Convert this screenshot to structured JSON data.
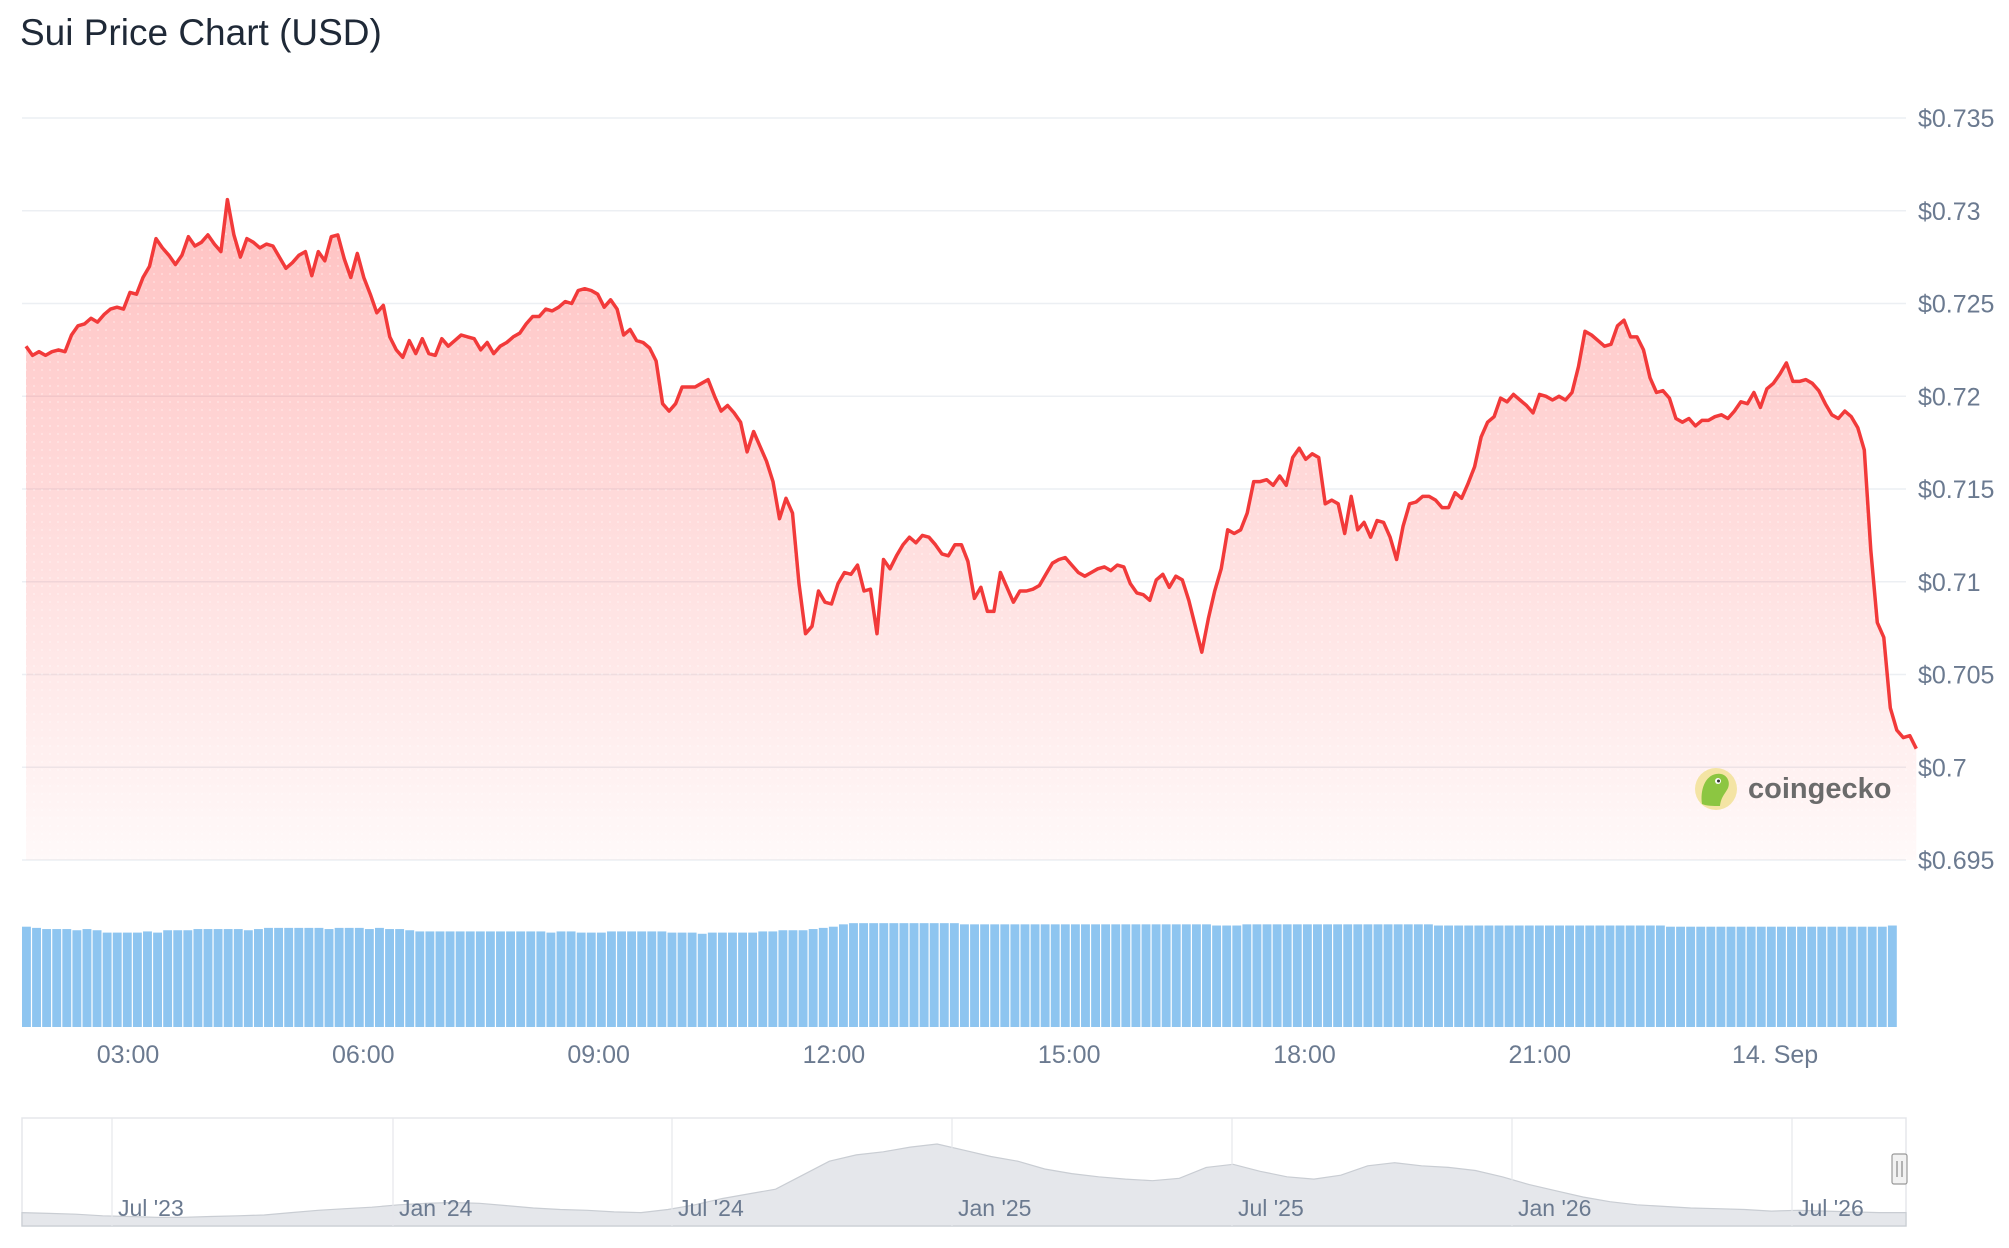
{
  "title": "Sui Price Chart (USD)",
  "watermark": "coingecko",
  "colors": {
    "price_line": "#f23a3a",
    "price_fill": "#ff6b6b",
    "volume_bar": "#8ec5f0",
    "navigator_fill": "#e5e7eb",
    "grid": "#eceff3",
    "axis_text": "#6b7a90"
  },
  "chart_data": [
    {
      "type": "area",
      "title": "Sui Price Chart (USD)",
      "xlabel": "",
      "ylabel": "",
      "x_tick_labels": [
        "03:00",
        "06:00",
        "09:00",
        "12:00",
        "15:00",
        "18:00",
        "21:00",
        "14. Sep"
      ],
      "y_tick_labels": [
        "$0.695",
        "$0.7",
        "$0.705",
        "$0.71",
        "$0.715",
        "$0.72",
        "$0.725",
        "$0.73",
        "$0.735"
      ],
      "ylim": [
        0.695,
        0.735
      ],
      "grid": true,
      "legend": "none",
      "series": [
        {
          "x_hours_start": 1.7,
          "x_hours_end": 25.8,
          "values": [
            0.7227,
            0.7222,
            0.7224,
            0.7222,
            0.7224,
            0.7225,
            0.7224,
            0.7233,
            0.7238,
            0.7239,
            0.7242,
            0.724,
            0.7244,
            0.7247,
            0.7248,
            0.7247,
            0.7256,
            0.7255,
            0.7264,
            0.727,
            0.7285,
            0.728,
            0.7276,
            0.7271,
            0.7276,
            0.7286,
            0.7281,
            0.7283,
            0.7287,
            0.7282,
            0.7278,
            0.7306,
            0.7287,
            0.7275,
            0.7285,
            0.7283,
            0.728,
            0.7282,
            0.7281,
            0.7275,
            0.7269,
            0.7272,
            0.7276,
            0.7278,
            0.7265,
            0.7278,
            0.7273,
            0.7286,
            0.7287,
            0.7274,
            0.7264,
            0.7277,
            0.7264,
            0.7255,
            0.7245,
            0.7249,
            0.7232,
            0.7225,
            0.7221,
            0.723,
            0.7223,
            0.7231,
            0.7223,
            0.7222,
            0.7231,
            0.7227,
            0.723,
            0.7233,
            0.7232,
            0.7231,
            0.7225,
            0.7229,
            0.7223,
            0.7227,
            0.7229,
            0.7232,
            0.7234,
            0.7239,
            0.7243,
            0.7243,
            0.7247,
            0.7246,
            0.7248,
            0.7251,
            0.725,
            0.7257,
            0.7258,
            0.7257,
            0.7255,
            0.7248,
            0.7252,
            0.7247,
            0.7233,
            0.7236,
            0.723,
            0.7229,
            0.7226,
            0.7219,
            0.7196,
            0.7192,
            0.7196,
            0.7205,
            0.7205,
            0.7205,
            0.7207,
            0.7209,
            0.72,
            0.7192,
            0.7195,
            0.7191,
            0.7186,
            0.717,
            0.7181,
            0.7173,
            0.7165,
            0.7154,
            0.7134,
            0.7145,
            0.7137,
            0.7099,
            0.7072,
            0.7076,
            0.7095,
            0.7089,
            0.7088,
            0.7099,
            0.7105,
            0.7104,
            0.7109,
            0.7095,
            0.7096,
            0.7072,
            0.7112,
            0.7107,
            0.7114,
            0.712,
            0.7124,
            0.7121,
            0.7125,
            0.7124,
            0.712,
            0.7115,
            0.7114,
            0.712,
            0.712,
            0.7111,
            0.7091,
            0.7097,
            0.7084,
            0.7084,
            0.7105,
            0.7097,
            0.7089,
            0.7095,
            0.7095,
            0.7096,
            0.7098,
            0.7104,
            0.711,
            0.7112,
            0.7113,
            0.7109,
            0.7105,
            0.7103,
            0.7105,
            0.7107,
            0.7108,
            0.7106,
            0.7109,
            0.7108,
            0.7099,
            0.7094,
            0.7093,
            0.709,
            0.7101,
            0.7104,
            0.7097,
            0.7103,
            0.7101,
            0.709,
            0.7076,
            0.7062,
            0.708,
            0.7095,
            0.7107,
            0.7128,
            0.7126,
            0.7128,
            0.7137,
            0.7154,
            0.7154,
            0.7155,
            0.7152,
            0.7157,
            0.7152,
            0.7167,
            0.7172,
            0.7166,
            0.7169,
            0.7167,
            0.7142,
            0.7144,
            0.7142,
            0.7126,
            0.7146,
            0.7128,
            0.7132,
            0.7124,
            0.7133,
            0.7132,
            0.7124,
            0.7112,
            0.713,
            0.7142,
            0.7143,
            0.7146,
            0.7146,
            0.7144,
            0.714,
            0.714,
            0.7148,
            0.7145,
            0.7153,
            0.7162,
            0.7178,
            0.7186,
            0.7189,
            0.7199,
            0.7197,
            0.7201,
            0.7198,
            0.7195,
            0.7191,
            0.7201,
            0.72,
            0.7198,
            0.72,
            0.7198,
            0.7202,
            0.7216,
            0.7235,
            0.7233,
            0.723,
            0.7227,
            0.7228,
            0.7238,
            0.7241,
            0.7232,
            0.7232,
            0.7225,
            0.721,
            0.7202,
            0.7203,
            0.7199,
            0.7188,
            0.7186,
            0.7188,
            0.7184,
            0.7187,
            0.7187,
            0.7189,
            0.719,
            0.7188,
            0.7192,
            0.7197,
            0.7196,
            0.7202,
            0.7194,
            0.7204,
            0.7207,
            0.7212,
            0.7218,
            0.7208,
            0.7208,
            0.7209,
            0.7207,
            0.7203,
            0.7196,
            0.719,
            0.7188,
            0.7192,
            0.7189,
            0.7183,
            0.7171,
            0.7117,
            0.7078,
            0.707,
            0.7032,
            0.702,
            0.7016,
            0.7017,
            0.701
          ]
        }
      ]
    },
    {
      "type": "bar",
      "title": "",
      "series": [
        {
          "name": "",
          "note": "volume bars shown without axis values",
          "relative_heights": [
            0.85,
            0.84,
            0.83,
            0.83,
            0.83,
            0.82,
            0.83,
            0.82,
            0.8,
            0.8,
            0.8,
            0.8,
            0.81,
            0.8,
            0.82,
            0.82,
            0.82,
            0.83,
            0.83,
            0.83,
            0.83,
            0.83,
            0.82,
            0.83,
            0.84,
            0.84,
            0.84,
            0.84,
            0.84,
            0.84,
            0.83,
            0.84,
            0.84,
            0.84,
            0.83,
            0.84,
            0.83,
            0.83,
            0.82,
            0.81,
            0.81,
            0.81,
            0.81,
            0.81,
            0.81,
            0.81,
            0.81,
            0.81,
            0.81,
            0.81,
            0.81,
            0.81,
            0.8,
            0.81,
            0.81,
            0.8,
            0.8,
            0.8,
            0.81,
            0.81,
            0.81,
            0.81,
            0.81,
            0.81,
            0.8,
            0.8,
            0.8,
            0.79,
            0.8,
            0.8,
            0.8,
            0.8,
            0.8,
            0.81,
            0.81,
            0.82,
            0.82,
            0.82,
            0.83,
            0.84,
            0.85,
            0.87,
            0.88,
            0.88,
            0.88,
            0.88,
            0.88,
            0.88,
            0.88,
            0.88,
            0.88,
            0.88,
            0.88,
            0.87,
            0.87,
            0.87,
            0.87,
            0.87,
            0.87,
            0.87,
            0.87,
            0.87,
            0.87,
            0.87,
            0.87,
            0.87,
            0.87,
            0.87,
            0.87,
            0.87,
            0.87,
            0.87,
            0.87,
            0.87,
            0.87,
            0.87,
            0.87,
            0.87,
            0.86,
            0.86,
            0.86,
            0.87,
            0.87,
            0.87,
            0.87,
            0.87,
            0.87,
            0.87,
            0.87,
            0.87,
            0.87,
            0.87,
            0.87,
            0.87,
            0.87,
            0.87,
            0.87,
            0.87,
            0.87,
            0.87,
            0.86,
            0.86,
            0.86,
            0.86,
            0.86,
            0.86,
            0.86,
            0.86,
            0.86,
            0.86,
            0.86,
            0.86,
            0.86,
            0.86,
            0.86,
            0.86,
            0.86,
            0.86,
            0.86,
            0.86,
            0.86,
            0.86,
            0.86,
            0.85,
            0.85,
            0.85,
            0.85,
            0.85,
            0.85,
            0.85,
            0.85,
            0.85,
            0.85,
            0.85,
            0.85,
            0.85,
            0.85,
            0.85,
            0.85,
            0.85,
            0.85,
            0.85,
            0.85,
            0.85,
            0.85,
            0.86
          ]
        }
      ]
    },
    {
      "type": "area",
      "title": "",
      "x_tick_labels": [
        "Jul '23",
        "Jan '24",
        "Jul '24",
        "Jan '25",
        "Jul '25",
        "Jan '26",
        "Jul '26"
      ],
      "series": [
        {
          "name": "",
          "note": "long-range navigator price outline",
          "relative_values": [
            0.12,
            0.11,
            0.1,
            0.08,
            0.07,
            0.06,
            0.06,
            0.07,
            0.08,
            0.09,
            0.12,
            0.15,
            0.17,
            0.19,
            0.22,
            0.24,
            0.25,
            0.24,
            0.21,
            0.18,
            0.16,
            0.15,
            0.13,
            0.12,
            0.16,
            0.22,
            0.3,
            0.36,
            0.42,
            0.6,
            0.78,
            0.86,
            0.9,
            0.96,
            1.0,
            0.92,
            0.84,
            0.78,
            0.68,
            0.62,
            0.58,
            0.55,
            0.53,
            0.56,
            0.7,
            0.74,
            0.65,
            0.58,
            0.55,
            0.6,
            0.72,
            0.76,
            0.72,
            0.7,
            0.66,
            0.58,
            0.48,
            0.4,
            0.32,
            0.26,
            0.22,
            0.2,
            0.18,
            0.17,
            0.16,
            0.14,
            0.15,
            0.14,
            0.13,
            0.12,
            0.12
          ]
        }
      ]
    }
  ]
}
